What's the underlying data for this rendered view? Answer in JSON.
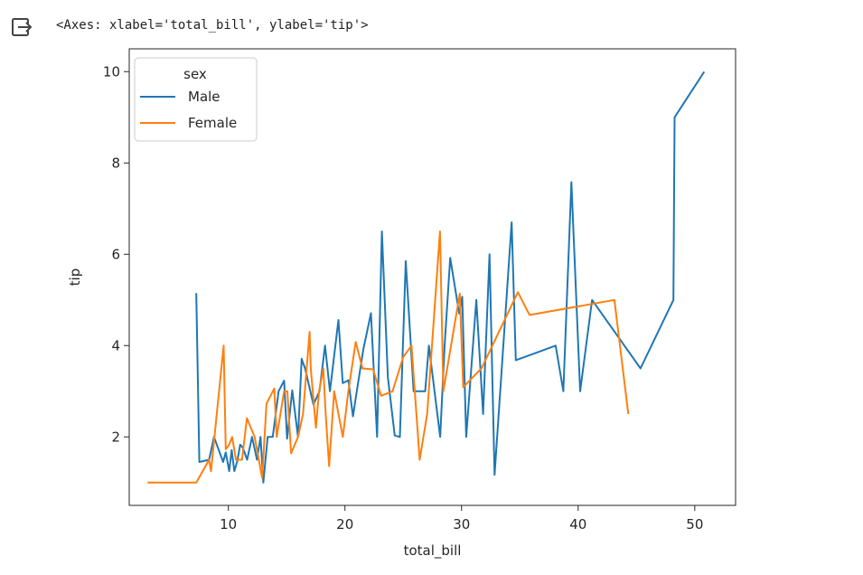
{
  "output": {
    "icon": "output-redirect-icon",
    "repr_text": "<Axes: xlabel='total_bill', ylabel='tip'>"
  },
  "chart_data": {
    "type": "line",
    "xlabel": "total_bill",
    "ylabel": "tip",
    "xlim": [
      1.5,
      53.5
    ],
    "ylim": [
      0.5,
      10.5
    ],
    "xticks": [
      10,
      20,
      30,
      40,
      50
    ],
    "yticks": [
      2,
      4,
      6,
      8,
      10
    ],
    "grid": false,
    "legend": {
      "title": "sex",
      "placement": "top-left"
    },
    "series": [
      {
        "name": "Male",
        "color": "#1f77b4",
        "x": [
          7.25,
          7.51,
          8.35,
          8.77,
          9.55,
          9.78,
          10.07,
          10.29,
          10.51,
          10.77,
          11.02,
          11.24,
          11.61,
          12.03,
          12.46,
          12.76,
          13.0,
          13.37,
          13.81,
          14.31,
          14.78,
          15.04,
          15.48,
          15.98,
          16.29,
          16.58,
          17.29,
          17.81,
          18.29,
          18.71,
          19.44,
          19.81,
          20.29,
          20.69,
          21.01,
          21.58,
          22.23,
          22.76,
          23.17,
          23.68,
          24.27,
          24.71,
          25.21,
          25.89,
          26.88,
          27.2,
          28.17,
          28.55,
          29.03,
          29.8,
          30.06,
          30.4,
          31.27,
          31.85,
          32.4,
          32.83,
          34.3,
          34.65,
          38.07,
          38.73,
          39.42,
          40.17,
          41.19,
          45.35,
          48.17,
          48.27,
          50.81
        ],
        "y": [
          5.15,
          1.45,
          1.5,
          2.0,
          1.45,
          1.66,
          1.25,
          1.71,
          1.25,
          1.47,
          1.83,
          1.76,
          1.5,
          2.0,
          1.5,
          2.0,
          1.0,
          2.0,
          2.0,
          3.0,
          3.23,
          1.96,
          3.02,
          2.0,
          3.71,
          3.5,
          2.71,
          3.0,
          4.0,
          3.0,
          4.56,
          3.18,
          3.24,
          2.45,
          3.0,
          3.92,
          4.71,
          2.0,
          6.5,
          3.31,
          2.03,
          2.0,
          5.85,
          3.0,
          3.0,
          4.0,
          2.0,
          4.0,
          5.92,
          4.7,
          5.07,
          2.0,
          5.0,
          2.5,
          6.0,
          1.17,
          6.7,
          3.68,
          4.0,
          3.0,
          7.58,
          3.0,
          5.0,
          3.5,
          5.0,
          9.0,
          10.0
        ]
      },
      {
        "name": "Female",
        "color": "#ff7f0e",
        "x": [
          3.07,
          7.25,
          8.35,
          8.51,
          9.6,
          9.78,
          10.07,
          10.33,
          10.65,
          11.17,
          11.59,
          12.26,
          12.9,
          13.27,
          13.94,
          14.15,
          14.78,
          15.06,
          15.38,
          15.98,
          16.4,
          16.97,
          17.07,
          17.51,
          17.78,
          18.15,
          18.35,
          18.64,
          19.08,
          19.82,
          20.29,
          20.92,
          21.5,
          22.42,
          23.1,
          24.08,
          25.0,
          25.71,
          26.41,
          27.05,
          28.15,
          28.44,
          29.85,
          30.14,
          31.71,
          34.83,
          35.83,
          43.11,
          44.3
        ],
        "y": [
          1.0,
          1.0,
          1.5,
          1.25,
          4.0,
          1.73,
          1.83,
          2.0,
          1.5,
          1.5,
          2.41,
          2.0,
          1.1,
          2.73,
          3.06,
          2.0,
          3.0,
          3.0,
          1.64,
          2.0,
          2.5,
          4.3,
          3.5,
          2.2,
          3.0,
          3.5,
          2.5,
          1.36,
          3.0,
          2.0,
          3.0,
          4.08,
          3.5,
          3.48,
          2.9,
          3.0,
          3.75,
          4.0,
          1.5,
          2.5,
          6.5,
          3.0,
          5.14,
          3.09,
          3.5,
          5.17,
          4.67,
          5.0,
          2.5
        ]
      }
    ]
  }
}
